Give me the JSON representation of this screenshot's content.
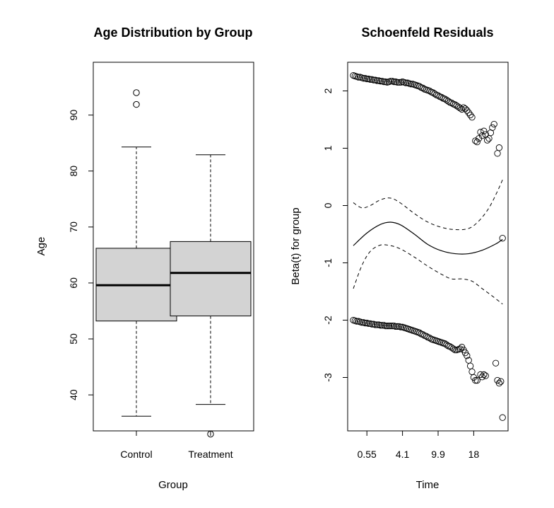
{
  "chart_data": [
    {
      "type": "box",
      "title": "Age Distribution by Group",
      "xlabel": "Group",
      "ylabel": "Age",
      "categories": [
        "Control",
        "Treatment"
      ],
      "ylim": [
        30,
        97
      ],
      "yticks": [
        40,
        50,
        60,
        70,
        80,
        90
      ],
      "colors": {
        "box_fill": "#d3d3d3",
        "stroke": "#000000"
      },
      "boxes": [
        {
          "category": "Control",
          "whisker_low": 36.2,
          "q1": 53.2,
          "median": 59.6,
          "q3": 66.2,
          "whisker_high": 84.3,
          "outliers": [
            91.9,
            94.0
          ]
        },
        {
          "category": "Treatment",
          "whisker_low": 38.3,
          "q1": 54.1,
          "median": 61.8,
          "q3": 67.4,
          "whisker_high": 82.9,
          "outliers": [
            33.0
          ]
        }
      ]
    },
    {
      "type": "scatter",
      "title": "Schoenfeld Residuals",
      "xlabel": "Time",
      "ylabel": "Beta(t) for group",
      "ylim": [
        -3.9,
        2.5
      ],
      "yticks": [
        -3,
        -2,
        -1,
        0,
        1,
        2
      ],
      "xticks": [
        "0.55",
        "4.1",
        "9.9",
        "18"
      ],
      "x_scale": "km-transformed time",
      "colors": {
        "points": "#000000",
        "fit": "#000000"
      },
      "upper_points": [
        [
          0,
          2.27
        ],
        [
          1,
          2.26
        ],
        [
          2,
          2.25
        ],
        [
          3,
          2.24
        ],
        [
          4,
          2.24
        ],
        [
          5,
          2.23
        ],
        [
          6,
          2.22
        ],
        [
          7,
          2.22
        ],
        [
          8,
          2.21
        ],
        [
          9,
          2.21
        ],
        [
          10,
          2.2
        ],
        [
          11,
          2.2
        ],
        [
          12,
          2.19
        ],
        [
          13,
          2.19
        ],
        [
          14,
          2.18
        ],
        [
          15,
          2.18
        ],
        [
          16,
          2.17
        ],
        [
          17,
          2.17
        ],
        [
          18,
          2.16
        ],
        [
          19,
          2.16
        ],
        [
          20,
          2.15
        ],
        [
          21,
          2.16
        ],
        [
          22,
          2.17
        ],
        [
          23,
          2.17
        ],
        [
          24,
          2.16
        ],
        [
          25,
          2.16
        ],
        [
          26,
          2.15
        ],
        [
          27,
          2.15
        ],
        [
          28,
          2.15
        ],
        [
          29,
          2.16
        ],
        [
          30,
          2.15
        ],
        [
          31,
          2.14
        ],
        [
          32,
          2.14
        ],
        [
          33,
          2.13
        ],
        [
          34,
          2.12
        ],
        [
          35,
          2.12
        ],
        [
          36,
          2.11
        ],
        [
          37,
          2.1
        ],
        [
          38,
          2.09
        ],
        [
          39,
          2.08
        ],
        [
          40,
          2.06
        ],
        [
          41,
          2.05
        ],
        [
          42,
          2.03
        ],
        [
          43,
          2.02
        ],
        [
          44,
          2.01
        ],
        [
          45,
          2.0
        ],
        [
          46,
          1.98
        ],
        [
          47,
          1.97
        ],
        [
          48,
          1.95
        ],
        [
          49,
          1.93
        ],
        [
          50,
          1.92
        ],
        [
          51,
          1.9
        ],
        [
          52,
          1.89
        ],
        [
          53,
          1.87
        ],
        [
          54,
          1.86
        ],
        [
          55,
          1.84
        ],
        [
          56,
          1.82
        ],
        [
          57,
          1.8
        ],
        [
          58,
          1.79
        ],
        [
          59,
          1.77
        ],
        [
          60,
          1.76
        ],
        [
          61,
          1.74
        ],
        [
          62,
          1.72
        ],
        [
          63,
          1.7
        ],
        [
          64,
          1.68
        ],
        [
          65,
          1.71
        ],
        [
          66,
          1.69
        ],
        [
          67,
          1.66
        ],
        [
          68,
          1.62
        ],
        [
          69,
          1.58
        ],
        [
          70,
          1.54
        ],
        [
          72,
          1.13
        ],
        [
          73,
          1.11
        ],
        [
          74,
          1.17
        ],
        [
          75,
          1.28
        ],
        [
          76,
          1.22
        ],
        [
          77,
          1.3
        ],
        [
          78,
          1.24
        ],
        [
          79,
          1.14
        ],
        [
          80,
          1.17
        ],
        [
          81,
          1.27
        ],
        [
          82,
          1.36
        ],
        [
          83,
          1.42
        ],
        [
          85,
          0.91
        ],
        [
          86,
          1.01
        ]
      ],
      "lower_points": [
        [
          0,
          -2.0
        ],
        [
          1,
          -2.01
        ],
        [
          2,
          -2.02
        ],
        [
          3,
          -2.02
        ],
        [
          4,
          -2.03
        ],
        [
          5,
          -2.04
        ],
        [
          6,
          -2.04
        ],
        [
          7,
          -2.05
        ],
        [
          8,
          -2.05
        ],
        [
          9,
          -2.06
        ],
        [
          10,
          -2.06
        ],
        [
          11,
          -2.07
        ],
        [
          12,
          -2.07
        ],
        [
          13,
          -2.08
        ],
        [
          14,
          -2.08
        ],
        [
          15,
          -2.08
        ],
        [
          16,
          -2.09
        ],
        [
          17,
          -2.09
        ],
        [
          18,
          -2.09
        ],
        [
          19,
          -2.1
        ],
        [
          20,
          -2.1
        ],
        [
          21,
          -2.1
        ],
        [
          22,
          -2.1
        ],
        [
          23,
          -2.1
        ],
        [
          24,
          -2.1
        ],
        [
          25,
          -2.11
        ],
        [
          26,
          -2.11
        ],
        [
          27,
          -2.11
        ],
        [
          28,
          -2.12
        ],
        [
          29,
          -2.12
        ],
        [
          30,
          -2.13
        ],
        [
          31,
          -2.14
        ],
        [
          32,
          -2.15
        ],
        [
          33,
          -2.16
        ],
        [
          34,
          -2.17
        ],
        [
          35,
          -2.18
        ],
        [
          36,
          -2.19
        ],
        [
          37,
          -2.2
        ],
        [
          38,
          -2.21
        ],
        [
          39,
          -2.22
        ],
        [
          40,
          -2.24
        ],
        [
          41,
          -2.25
        ],
        [
          42,
          -2.27
        ],
        [
          43,
          -2.28
        ],
        [
          44,
          -2.3
        ],
        [
          45,
          -2.31
        ],
        [
          46,
          -2.33
        ],
        [
          47,
          -2.34
        ],
        [
          48,
          -2.35
        ],
        [
          49,
          -2.36
        ],
        [
          50,
          -2.37
        ],
        [
          51,
          -2.38
        ],
        [
          52,
          -2.39
        ],
        [
          53,
          -2.4
        ],
        [
          54,
          -2.41
        ],
        [
          55,
          -2.43
        ],
        [
          56,
          -2.45
        ],
        [
          57,
          -2.46
        ],
        [
          58,
          -2.48
        ],
        [
          59,
          -2.5
        ],
        [
          60,
          -2.52
        ],
        [
          61,
          -2.52
        ],
        [
          62,
          -2.51
        ],
        [
          63,
          -2.5
        ],
        [
          64,
          -2.47
        ],
        [
          65,
          -2.52
        ],
        [
          66,
          -2.57
        ],
        [
          67,
          -2.62
        ],
        [
          68,
          -2.7
        ],
        [
          69,
          -2.8
        ],
        [
          70,
          -2.9
        ],
        [
          71,
          -3.0
        ],
        [
          72,
          -3.05
        ],
        [
          73,
          -3.05
        ],
        [
          75,
          -2.95
        ],
        [
          76,
          -2.99
        ],
        [
          77,
          -2.95
        ],
        [
          78,
          -2.97
        ],
        [
          84,
          -2.75
        ],
        [
          85,
          -3.05
        ],
        [
          86,
          -3.1
        ],
        [
          87,
          -3.07
        ],
        [
          88,
          -3.7
        ]
      ],
      "extra_points": [
        [
          88,
          -0.57
        ]
      ],
      "fit": {
        "center": [
          [
            0,
            -0.7
          ],
          [
            8,
            -0.48
          ],
          [
            16,
            -0.33
          ],
          [
            22,
            -0.29
          ],
          [
            28,
            -0.34
          ],
          [
            36,
            -0.5
          ],
          [
            44,
            -0.68
          ],
          [
            52,
            -0.79
          ],
          [
            60,
            -0.84
          ],
          [
            68,
            -0.84
          ],
          [
            76,
            -0.78
          ],
          [
            84,
            -0.67
          ],
          [
            88,
            -0.59
          ]
        ],
        "upper": [
          [
            0,
            0.05
          ],
          [
            5,
            -0.04
          ],
          [
            10,
            0.0
          ],
          [
            16,
            0.1
          ],
          [
            22,
            0.13
          ],
          [
            28,
            0.04
          ],
          [
            36,
            -0.14
          ],
          [
            44,
            -0.29
          ],
          [
            52,
            -0.38
          ],
          [
            60,
            -0.42
          ],
          [
            68,
            -0.4
          ],
          [
            74,
            -0.27
          ],
          [
            80,
            -0.04
          ],
          [
            85,
            0.25
          ],
          [
            88,
            0.45
          ]
        ],
        "lower": [
          [
            0,
            -1.45
          ],
          [
            5,
            -1.05
          ],
          [
            10,
            -0.8
          ],
          [
            16,
            -0.69
          ],
          [
            22,
            -0.7
          ],
          [
            28,
            -0.76
          ],
          [
            36,
            -0.9
          ],
          [
            44,
            -1.06
          ],
          [
            52,
            -1.2
          ],
          [
            58,
            -1.28
          ],
          [
            64,
            -1.28
          ],
          [
            70,
            -1.32
          ],
          [
            76,
            -1.45
          ],
          [
            82,
            -1.58
          ],
          [
            88,
            -1.72
          ]
        ]
      },
      "xtick_positions": [
        8,
        29,
        50,
        71
      ]
    }
  ]
}
